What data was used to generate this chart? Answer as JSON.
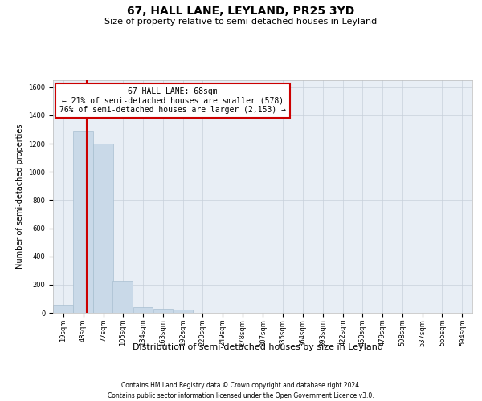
{
  "title": "67, HALL LANE, LEYLAND, PR25 3YD",
  "subtitle": "Size of property relative to semi-detached houses in Leyland",
  "xlabel": "Distribution of semi-detached houses by size in Leyland",
  "ylabel": "Number of semi-detached properties",
  "footnote1": "Contains HM Land Registry data © Crown copyright and database right 2024.",
  "footnote2": "Contains public sector information licensed under the Open Government Licence v3.0.",
  "annotation_title": "67 HALL LANE: 68sqm",
  "annotation_line1": "← 21% of semi-detached houses are smaller (578)",
  "annotation_line2": "76% of semi-detached houses are larger (2,153) →",
  "bins": [
    19,
    48,
    77,
    105,
    134,
    163,
    192,
    220,
    249,
    278,
    307,
    335,
    364,
    393,
    422,
    450,
    479,
    508,
    537,
    565,
    594
  ],
  "bin_labels": [
    "19sqm",
    "48sqm",
    "77sqm",
    "105sqm",
    "134sqm",
    "163sqm",
    "192sqm",
    "220sqm",
    "249sqm",
    "278sqm",
    "307sqm",
    "335sqm",
    "364sqm",
    "393sqm",
    "422sqm",
    "450sqm",
    "479sqm",
    "508sqm",
    "537sqm",
    "565sqm",
    "594sqm"
  ],
  "values": [
    55,
    1290,
    1200,
    230,
    40,
    30,
    20,
    0,
    0,
    0,
    0,
    0,
    0,
    0,
    0,
    0,
    0,
    0,
    0,
    0,
    0
  ],
  "bar_color": "#c9d9e8",
  "bar_edge_color": "#a8bfd0",
  "vline_color": "#cc0000",
  "vline_x": 68,
  "ylim": [
    0,
    1650
  ],
  "yticks": [
    0,
    200,
    400,
    600,
    800,
    1000,
    1200,
    1400,
    1600
  ],
  "ax_facecolor": "#e8eef5",
  "background_color": "#ffffff",
  "grid_color": "#c8d0da",
  "annotation_box_color": "#ffffff",
  "annotation_box_edge": "#cc0000",
  "title_fontsize": 10,
  "subtitle_fontsize": 8,
  "ylabel_fontsize": 7,
  "xlabel_fontsize": 8,
  "tick_fontsize": 6,
  "annot_fontsize": 7,
  "footnote_fontsize": 5.5
}
